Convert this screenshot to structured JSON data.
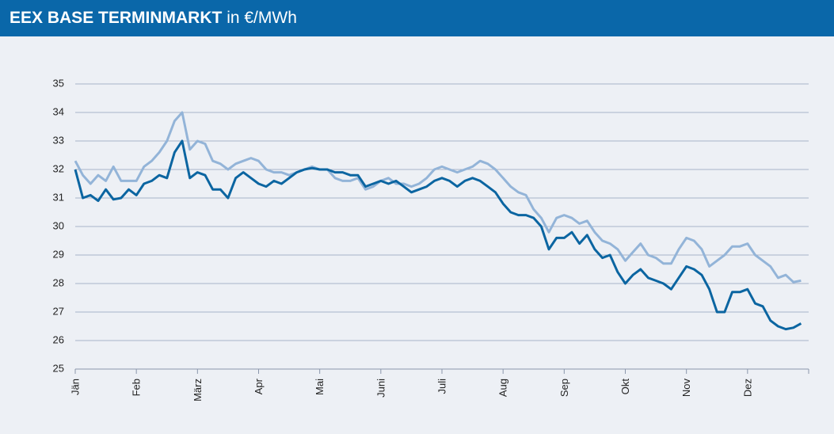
{
  "chart_data": {
    "type": "line",
    "title": "EEX BASE TERMINMARKT",
    "subtitle": "in €/MWh",
    "categories": [
      "Jän",
      null,
      null,
      null,
      null,
      null,
      null,
      null,
      "Feb",
      null,
      null,
      null,
      null,
      null,
      null,
      null,
      "März",
      null,
      null,
      null,
      null,
      null,
      null,
      null,
      "Apr",
      null,
      null,
      null,
      null,
      null,
      null,
      null,
      "Mai",
      null,
      null,
      null,
      null,
      null,
      null,
      null,
      "Juni",
      null,
      null,
      null,
      null,
      null,
      null,
      null,
      "Juli",
      null,
      null,
      null,
      null,
      null,
      null,
      null,
      "Aug",
      null,
      null,
      null,
      null,
      null,
      null,
      null,
      "Sep",
      null,
      null,
      null,
      null,
      null,
      null,
      null,
      "Okt",
      null,
      null,
      null,
      null,
      null,
      null,
      null,
      "Nov",
      null,
      null,
      null,
      null,
      null,
      null,
      null,
      "Dez",
      null,
      null,
      null,
      null,
      null,
      null,
      null
    ],
    "series": [
      {
        "color": "#0b65a1",
        "values": [
          32.0,
          31.0,
          31.1,
          30.9,
          31.3,
          30.95,
          31.0,
          31.3,
          31.1,
          31.5,
          31.6,
          31.8,
          31.7,
          32.6,
          33.0,
          31.7,
          31.9,
          31.8,
          31.3,
          31.3,
          31.0,
          31.7,
          31.9,
          31.7,
          31.5,
          31.4,
          31.6,
          31.5,
          31.7,
          31.9,
          32.0,
          32.05,
          32.0,
          32.0,
          31.9,
          31.9,
          31.8,
          31.8,
          31.4,
          31.5,
          31.6,
          31.5,
          31.6,
          31.4,
          31.2,
          31.3,
          31.4,
          31.6,
          31.7,
          31.6,
          31.4,
          31.6,
          31.7,
          31.6,
          31.4,
          31.2,
          30.8,
          30.5,
          30.4,
          30.4,
          30.3,
          30.0,
          29.2,
          29.6,
          29.6,
          29.8,
          29.4,
          29.7,
          29.2,
          28.9,
          29.0,
          28.4,
          28.0,
          28.3,
          28.5,
          28.2,
          28.1,
          28.0,
          27.8,
          28.2,
          28.6,
          28.5,
          28.3,
          27.8,
          27.0,
          27.0,
          27.7,
          27.7,
          27.8,
          27.3,
          27.2,
          26.7,
          26.5,
          26.4,
          26.45,
          26.6
        ]
      },
      {
        "color": "#93b4d8",
        "values": [
          32.3,
          31.8,
          31.5,
          31.8,
          31.6,
          32.1,
          31.6,
          31.6,
          31.6,
          32.1,
          32.3,
          32.6,
          33.0,
          33.7,
          34.0,
          32.7,
          33.0,
          32.9,
          32.3,
          32.2,
          32.0,
          32.2,
          32.3,
          32.4,
          32.3,
          32.0,
          31.9,
          31.9,
          31.8,
          31.9,
          32.0,
          32.1,
          32.0,
          32.0,
          31.7,
          31.6,
          31.6,
          31.7,
          31.3,
          31.4,
          31.6,
          31.7,
          31.5,
          31.5,
          31.4,
          31.5,
          31.7,
          32.0,
          32.1,
          32.0,
          31.9,
          32.0,
          32.1,
          32.3,
          32.2,
          32.0,
          31.7,
          31.4,
          31.2,
          31.1,
          30.6,
          30.3,
          29.8,
          30.3,
          30.4,
          30.3,
          30.1,
          30.2,
          29.8,
          29.5,
          29.4,
          29.2,
          28.8,
          29.1,
          29.4,
          29.0,
          28.9,
          28.7,
          28.7,
          29.2,
          29.6,
          29.5,
          29.2,
          28.6,
          28.8,
          29.0,
          29.3,
          29.3,
          29.4,
          29.0,
          28.8,
          28.6,
          28.2,
          28.3,
          28.05,
          28.1
        ]
      }
    ],
    "ylim": [
      25,
      35
    ],
    "yticks": [
      25,
      26,
      27,
      28,
      29,
      30,
      31,
      32,
      33,
      34,
      35
    ],
    "grid": true
  }
}
